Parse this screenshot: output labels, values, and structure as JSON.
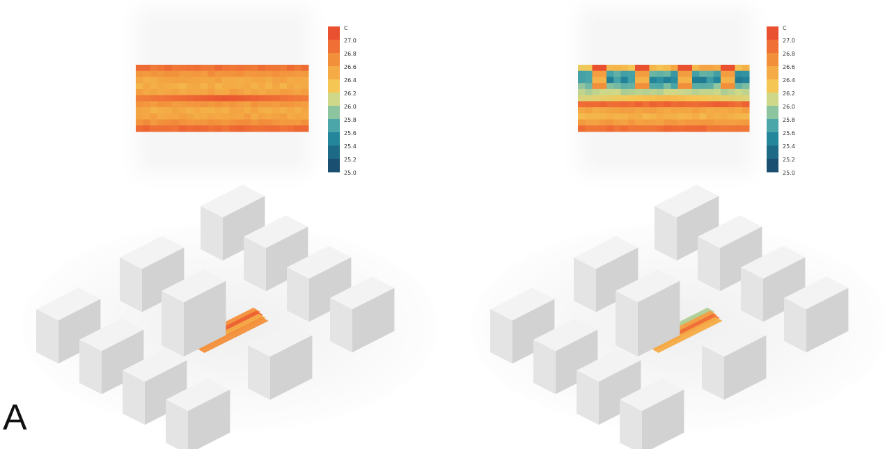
{
  "colors": {
    "scale": [
      "#1b4f72",
      "#1d6a87",
      "#23869b",
      "#4aa6a8",
      "#8dc4a0",
      "#cfd889",
      "#f5c654",
      "#f4ab45",
      "#f28f3b",
      "#ef6f35",
      "#e8502f"
    ],
    "building_top": "#f3f3f3",
    "building_left": "#e4e4e4",
    "building_right": "#d2d2d2",
    "ground": "#fafafa"
  },
  "legend": {
    "unit": "C",
    "ticks": [
      "27.0",
      "26.8",
      "26.6",
      "26.4",
      "26.2",
      "26.0",
      "25.8",
      "25.6",
      "25.4",
      "25.2",
      "25.0"
    ],
    "min": 25.0,
    "max": 27.0
  },
  "panels": [
    {
      "id": "left",
      "heatmap_rows_mean_c": [
        26.78,
        26.56,
        26.42,
        26.38,
        26.46,
        26.95,
        26.52,
        26.4,
        26.45,
        26.58,
        26.82
      ],
      "courtyard_rows_mean_c": [
        26.6,
        26.9,
        26.4,
        26.6
      ]
    },
    {
      "id": "right",
      "heatmap_rows_mean_c": [
        26.3,
        25.6,
        25.45,
        25.7,
        25.95,
        26.3,
        26.85,
        26.45,
        26.35,
        26.5,
        26.8
      ],
      "courtyard_rows_mean_c": [
        25.9,
        26.5,
        26.8,
        26.4
      ]
    }
  ],
  "figure_label": "A"
}
